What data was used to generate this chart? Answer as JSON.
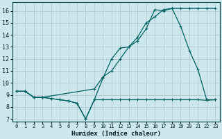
{
  "xlabel": "Humidex (Indice chaleur)",
  "background_color": "#cce8ee",
  "grid_color": "#b8ced4",
  "line_color": "#006060",
  "xlim": [
    -0.5,
    23.5
  ],
  "ylim": [
    6.8,
    16.7
  ],
  "xticks": [
    0,
    1,
    2,
    3,
    4,
    5,
    6,
    7,
    8,
    9,
    10,
    11,
    12,
    13,
    14,
    15,
    16,
    17,
    18,
    19,
    20,
    21,
    22,
    23
  ],
  "yticks": [
    7,
    8,
    9,
    10,
    11,
    12,
    13,
    14,
    15,
    16
  ],
  "line1_x": [
    0,
    1,
    2,
    3,
    4,
    5,
    6,
    7,
    8,
    9,
    10,
    11,
    12,
    13,
    14,
    15,
    16,
    17,
    18,
    19,
    20,
    21,
    22,
    23
  ],
  "line1_y": [
    9.3,
    9.3,
    8.8,
    8.8,
    8.7,
    8.6,
    8.5,
    8.3,
    7.0,
    8.6,
    8.6,
    8.6,
    8.6,
    8.6,
    8.6,
    8.6,
    8.6,
    8.6,
    8.6,
    8.6,
    8.6,
    8.6,
    8.55,
    8.6
  ],
  "line2_x": [
    0,
    1,
    2,
    3,
    4,
    5,
    6,
    7,
    8,
    9,
    10,
    11,
    12,
    13,
    14,
    15,
    16,
    17,
    18,
    19,
    20,
    21,
    22,
    23
  ],
  "line2_y": [
    9.3,
    9.3,
    8.8,
    8.8,
    8.7,
    8.6,
    8.5,
    8.3,
    7.0,
    8.6,
    10.4,
    12.0,
    12.9,
    13.0,
    13.8,
    15.0,
    15.5,
    16.1,
    16.2,
    14.7,
    12.7,
    11.1,
    8.6,
    8.6
  ],
  "line3_x": [
    0,
    1,
    2,
    3,
    9,
    10,
    11,
    12,
    13,
    14,
    15,
    16,
    17,
    18,
    19,
    20,
    21,
    22,
    23
  ],
  "line3_y": [
    9.3,
    9.3,
    8.8,
    8.8,
    9.5,
    10.5,
    11.0,
    12.0,
    13.0,
    13.5,
    14.5,
    16.1,
    16.0,
    16.2,
    16.2,
    16.2,
    16.2,
    16.2,
    16.2
  ]
}
